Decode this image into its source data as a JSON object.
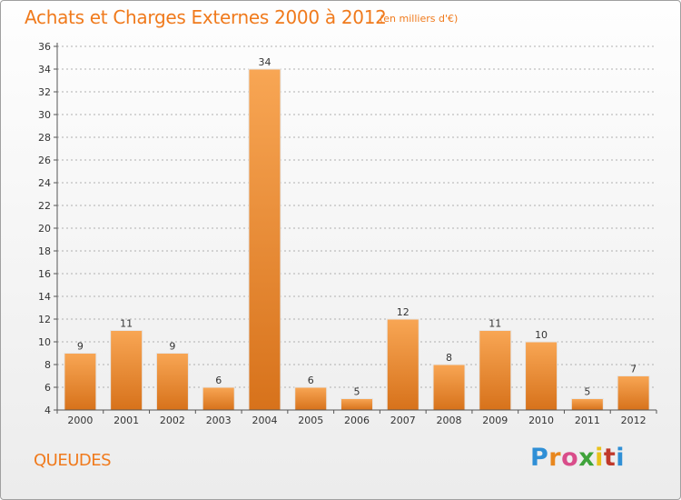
{
  "header": {
    "title": "Achats et Charges Externes 2000 à 2012",
    "subtitle": "(en milliers d'€)"
  },
  "footer": {
    "commune": "QUEUDES",
    "logo": {
      "letters": [
        "P",
        "r",
        "o",
        "x",
        "i",
        "t",
        "i"
      ],
      "colors": [
        "#2f8fd6",
        "#e8871e",
        "#d94d8a",
        "#3fa33a",
        "#e9c21a",
        "#c0392b",
        "#2f8fd6"
      ]
    }
  },
  "colors": {
    "accent": "#f07a1c",
    "bar_top": "#f8a654",
    "bar_bottom": "#d7721b",
    "axis": "#555555",
    "grid": "#b0b0b0"
  },
  "chart_data": {
    "type": "bar",
    "categories": [
      "2000",
      "2001",
      "2002",
      "2003",
      "2004",
      "2005",
      "2006",
      "2007",
      "2008",
      "2009",
      "2010",
      "2011",
      "2012"
    ],
    "values": [
      9,
      11,
      9,
      6,
      34,
      6,
      5,
      12,
      8,
      11,
      10,
      5,
      7
    ],
    "data_labels": [
      "9",
      "11",
      "9",
      "6",
      "34",
      "6",
      "5",
      "12",
      "8",
      "11",
      "10",
      "5",
      "7"
    ],
    "yticks": [
      4,
      6,
      8,
      10,
      12,
      14,
      16,
      18,
      20,
      22,
      24,
      26,
      28,
      30,
      32,
      34,
      36
    ],
    "ytick_labels": [
      "4",
      "6",
      "8",
      "10",
      "12",
      "14",
      "16",
      "18",
      "20",
      "22",
      "24",
      "26",
      "28",
      "30",
      "32",
      "34",
      "36"
    ],
    "ylim": [
      4,
      36
    ],
    "grid": "horizontal-dashed",
    "legend": "none"
  }
}
